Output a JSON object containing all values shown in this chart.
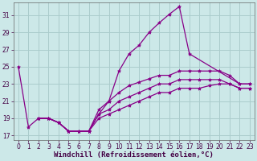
{
  "xlabel": "Windchill (Refroidissement éolien,°C)",
  "xlim": [
    -0.5,
    23.5
  ],
  "ylim": [
    16.5,
    32.5
  ],
  "yticks": [
    17,
    19,
    21,
    23,
    25,
    27,
    29,
    31
  ],
  "xticks": [
    0,
    1,
    2,
    3,
    4,
    5,
    6,
    7,
    8,
    9,
    10,
    11,
    12,
    13,
    14,
    15,
    16,
    17,
    18,
    19,
    20,
    21,
    22,
    23
  ],
  "bg_color": "#cce8e8",
  "grid_color": "#aacccc",
  "line_color": "#880088",
  "marker": "*",
  "markersize": 3.0,
  "linewidth": 0.9,
  "tick_fontsize": 5.5,
  "xlabel_fontsize": 6.5,
  "lines": [
    {
      "x": [
        0,
        1,
        2,
        3,
        4,
        5,
        6,
        7,
        8,
        9,
        10,
        11,
        12,
        13,
        14,
        15,
        16,
        17,
        22,
        23
      ],
      "y": [
        25,
        18,
        19,
        19,
        18.5,
        17.5,
        17.5,
        17.5,
        19.5,
        21,
        24.5,
        26.5,
        27.5,
        29,
        30.1,
        31.1,
        32,
        26.5,
        23,
        23
      ]
    },
    {
      "x": [
        2,
        3,
        4,
        5,
        6,
        7,
        8,
        9,
        10,
        11,
        12,
        13,
        14,
        15,
        16,
        17,
        18,
        19,
        20,
        21,
        22,
        23
      ],
      "y": [
        19,
        19,
        18.5,
        17.5,
        17.5,
        17.5,
        20,
        21,
        22,
        22.8,
        23.2,
        23.6,
        24,
        24,
        24.5,
        24.5,
        24.5,
        24.5,
        24.5,
        24,
        23,
        23
      ]
    },
    {
      "x": [
        2,
        3,
        4,
        5,
        6,
        7,
        8,
        9,
        10,
        11,
        12,
        13,
        14,
        15,
        16,
        17,
        18,
        19,
        20,
        21,
        22,
        23
      ],
      "y": [
        19,
        19,
        18.5,
        17.5,
        17.5,
        17.5,
        19.5,
        20,
        21,
        21.5,
        22,
        22.5,
        23,
        23,
        23.5,
        23.5,
        23.5,
        23.5,
        23.5,
        23,
        22.5,
        22.5
      ]
    },
    {
      "x": [
        2,
        3,
        4,
        5,
        6,
        7,
        8,
        9,
        10,
        11,
        12,
        13,
        14,
        15,
        16,
        17,
        18,
        19,
        20,
        21,
        22,
        23
      ],
      "y": [
        19,
        19,
        18.5,
        17.5,
        17.5,
        17.5,
        19,
        19.5,
        20,
        20.5,
        21,
        21.5,
        22,
        22,
        22.5,
        22.5,
        22.5,
        22.8,
        23,
        23,
        22.5,
        22.5
      ]
    }
  ]
}
